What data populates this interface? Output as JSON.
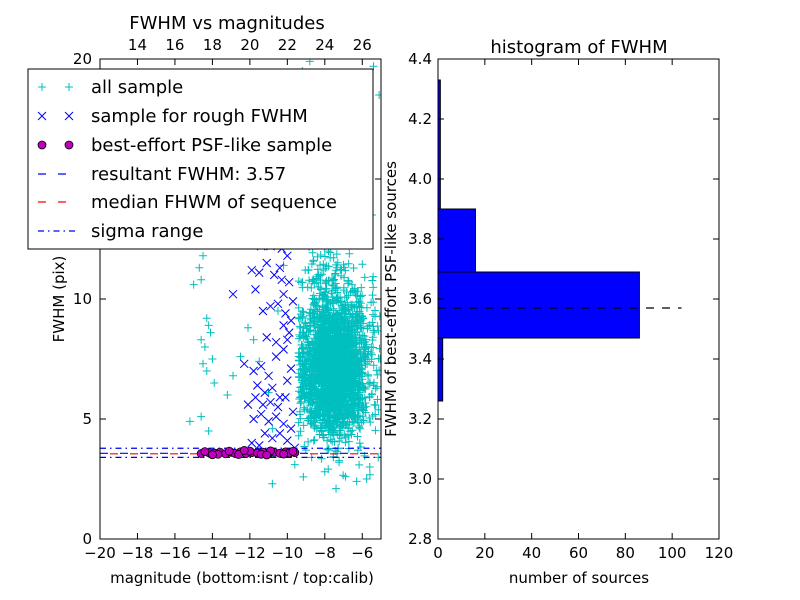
{
  "chart_data": [
    {
      "type": "scatter",
      "title": "FWHM vs magnitudes",
      "xlabel": "magnitude (bottom:isnt / top:calib)",
      "ylabel": "FWHM (pix)",
      "xlim": [
        -20,
        -5
      ],
      "ylim": [
        0,
        20
      ],
      "xticks": [
        -20,
        -18,
        -16,
        -14,
        -12,
        -10,
        -8,
        -6
      ],
      "xtick_labels": [
        "−20",
        "−18",
        "−16",
        "−14",
        "−12",
        "−10",
        "−8",
        "−6"
      ],
      "yticks": [
        0,
        5,
        10,
        15,
        20
      ],
      "ytick_labels": [
        "0",
        "5",
        "10",
        "15",
        "20"
      ],
      "top_axis": {
        "ticks": [
          14,
          16,
          18,
          20,
          22,
          24,
          26
        ],
        "tick_labels": [
          "14",
          "16",
          "18",
          "20",
          "22",
          "24",
          "26"
        ],
        "offset_to_bottom": -32
      },
      "legend_position": "top-left",
      "series": [
        {
          "name": "all sample",
          "marker": "plus",
          "color": "#00bfbf",
          "points": [
            [
              -14.9,
              15.9
            ],
            [
              -14.5,
              11.8
            ],
            [
              -14.7,
              11.3
            ],
            [
              -14.6,
              10.8
            ],
            [
              -15.0,
              10.6
            ],
            [
              -14.3,
              9.2
            ],
            [
              -14.2,
              8.9
            ],
            [
              -14.1,
              8.6
            ],
            [
              -14.6,
              8.3
            ],
            [
              -14.4,
              8.0
            ],
            [
              -14.0,
              7.5
            ],
            [
              -14.5,
              7.3
            ],
            [
              -14.3,
              7.0
            ],
            [
              -13.9,
              6.5
            ],
            [
              -14.6,
              5.1
            ],
            [
              -14.2,
              4.5
            ],
            [
              -15.2,
              4.9
            ],
            [
              -13.2,
              6.0
            ],
            [
              -12.5,
              7.6
            ],
            [
              -12.9,
              6.8
            ],
            [
              -12.1,
              8.8
            ],
            [
              -11.8,
              8.3
            ],
            [
              -11.5,
              7.4
            ],
            [
              -11.0,
              6.1
            ],
            [
              -10.8,
              4.6
            ],
            [
              -10.5,
              9.5
            ],
            [
              -10.4,
              12.9
            ],
            [
              -10.2,
              11.4
            ],
            [
              -10.0,
              16.4
            ],
            [
              -9.9,
              13.8
            ],
            [
              -9.6,
              15.1
            ],
            [
              -9.4,
              18.6
            ],
            [
              -9.2,
              19.5
            ],
            [
              -9.0,
              17.2
            ],
            [
              -8.8,
              19.9
            ],
            [
              -8.5,
              18.1
            ],
            [
              -8.2,
              19.4
            ],
            [
              -7.9,
              17.6
            ],
            [
              -7.6,
              18.8
            ],
            [
              -7.2,
              19.2
            ],
            [
              -6.8,
              18.3
            ],
            [
              -6.4,
              17.9
            ],
            [
              -5.9,
              19.3
            ],
            [
              -5.4,
              19.7
            ],
            [
              -5.1,
              18.5
            ],
            [
              -7.4,
              2.1
            ],
            [
              -6.9,
              2.6
            ],
            [
              -6.3,
              2.4
            ],
            [
              -5.6,
              3.0
            ],
            [
              -8.0,
              2.8
            ],
            [
              -10.8,
              2.3
            ],
            [
              -9.6,
              3.1
            ],
            [
              -8.7,
              3.4
            ]
          ],
          "dense_cloud": {
            "x_range": [
              -9.4,
              -5.0
            ],
            "y_range": [
              2.5,
              13.5
            ],
            "center": [
              -7.5,
              6.0
            ],
            "count": 2400
          }
        },
        {
          "name": "sample for rough FWHM",
          "marker": "x",
          "color": "#0000ff",
          "points": [
            [
              -12.9,
              10.2
            ],
            [
              -11.9,
              11.2
            ],
            [
              -11.5,
              11.1
            ],
            [
              -11.1,
              11.5
            ],
            [
              -10.7,
              11.0
            ],
            [
              -10.4,
              11.3
            ],
            [
              -10.2,
              10.2
            ],
            [
              -11.7,
              10.4
            ],
            [
              -11.3,
              9.5
            ],
            [
              -10.9,
              9.7
            ],
            [
              -10.5,
              9.8
            ],
            [
              -10.1,
              9.4
            ],
            [
              -9.9,
              10.7
            ],
            [
              -9.8,
              9.1
            ],
            [
              -12.3,
              7.3
            ],
            [
              -11.8,
              7.0
            ],
            [
              -11.4,
              7.2
            ],
            [
              -11.0,
              6.8
            ],
            [
              -10.6,
              7.6
            ],
            [
              -10.2,
              7.9
            ],
            [
              -10.0,
              8.3
            ],
            [
              -11.6,
              6.4
            ],
            [
              -11.2,
              6.1
            ],
            [
              -10.8,
              6.3
            ],
            [
              -10.4,
              5.9
            ],
            [
              -10.0,
              6.6
            ],
            [
              -9.8,
              7.1
            ],
            [
              -12.1,
              5.6
            ],
            [
              -11.7,
              5.9
            ],
            [
              -11.3,
              5.6
            ],
            [
              -10.9,
              5.7
            ],
            [
              -10.5,
              5.5
            ],
            [
              -10.1,
              5.9
            ],
            [
              -9.7,
              5.3
            ],
            [
              -11.8,
              5.0
            ],
            [
              -11.4,
              5.2
            ],
            [
              -11.0,
              4.9
            ],
            [
              -10.6,
              5.1
            ],
            [
              -10.2,
              4.8
            ],
            [
              -9.8,
              4.6
            ],
            [
              -11.2,
              4.4
            ],
            [
              -10.8,
              4.2
            ],
            [
              -10.4,
              4.4
            ],
            [
              -10.0,
              4.1
            ],
            [
              -11.9,
              4.0
            ],
            [
              -11.5,
              3.9
            ],
            [
              -9.6,
              3.8
            ],
            [
              -10.3,
              12.1
            ],
            [
              -10.0,
              11.8
            ],
            [
              -9.8,
              12.3
            ],
            [
              -10.9,
              12.2
            ],
            [
              -11.4,
              12.2
            ],
            [
              -10.2,
              8.9
            ],
            [
              -9.9,
              8.6
            ],
            [
              -10.6,
              8.2
            ],
            [
              -11.1,
              8.4
            ],
            [
              -9.7,
              9.9
            ],
            [
              -10.3,
              10.8
            ]
          ]
        },
        {
          "name": "best-effort PSF-like sample",
          "marker": "circle",
          "color": "#bf00bf",
          "points": [
            [
              -14.6,
              3.56
            ],
            [
              -14.2,
              3.6
            ],
            [
              -13.9,
              3.58
            ],
            [
              -13.6,
              3.62
            ],
            [
              -13.3,
              3.55
            ],
            [
              -13.0,
              3.61
            ],
            [
              -12.8,
              3.57
            ],
            [
              -12.5,
              3.63
            ],
            [
              -12.2,
              3.56
            ],
            [
              -11.9,
              3.6
            ],
            [
              -11.6,
              3.58
            ],
            [
              -11.3,
              3.62
            ],
            [
              -11.0,
              3.55
            ],
            [
              -10.7,
              3.61
            ],
            [
              -10.4,
              3.57
            ],
            [
              -10.1,
              3.63
            ],
            [
              -9.9,
              3.58
            ],
            [
              -9.6,
              3.6
            ],
            [
              -14.4,
              3.64
            ],
            [
              -13.7,
              3.53
            ],
            [
              -13.1,
              3.66
            ],
            [
              -12.6,
              3.52
            ],
            [
              -12.0,
              3.66
            ],
            [
              -11.4,
              3.53
            ],
            [
              -10.9,
              3.67
            ],
            [
              -10.2,
              3.54
            ],
            [
              -9.7,
              3.65
            ],
            [
              -14.0,
              3.51
            ],
            [
              -12.3,
              3.69
            ],
            [
              -11.1,
              3.5
            ]
          ]
        },
        {
          "name": "resultant FWHM: 3.57",
          "line": "dashed",
          "color": "#0000ff",
          "y": 3.57
        },
        {
          "name": "median FHWM of sequence",
          "line": "dashed",
          "color": "#ff0000",
          "y": 3.57
        },
        {
          "name": "sigma range",
          "line": "dashdot",
          "color": "#0000ff",
          "y": [
            3.4,
            3.78
          ]
        }
      ]
    },
    {
      "type": "bar",
      "orientation": "horizontal",
      "title": "histogram of FWHM",
      "xlabel": "number of sources",
      "ylabel": "FWHM of best-effort PSF-like sources",
      "xlim": [
        0,
        120
      ],
      "ylim": [
        2.8,
        4.4
      ],
      "xticks": [
        0,
        20,
        40,
        60,
        80,
        100,
        120
      ],
      "xtick_labels": [
        "0",
        "20",
        "40",
        "60",
        "80",
        "100",
        "120"
      ],
      "yticks": [
        2.8,
        3.0,
        3.2,
        3.4,
        3.6,
        3.8,
        4.0,
        4.2,
        4.4
      ],
      "ytick_labels": [
        "2.8",
        "3.0",
        "3.2",
        "3.4",
        "3.6",
        "3.8",
        "4.0",
        "4.2",
        "4.4"
      ],
      "bar_color": "#0000ff",
      "bins": [
        {
          "y0": 3.26,
          "y1": 3.47,
          "count": 2
        },
        {
          "y0": 3.47,
          "y1": 3.69,
          "count": 86
        },
        {
          "y0": 3.69,
          "y1": 3.9,
          "count": 16
        },
        {
          "y0": 3.9,
          "y1": 4.33,
          "count": 1
        }
      ],
      "reference_line": {
        "y": 3.57,
        "x": [
          0,
          104
        ],
        "style": "dashed",
        "color": "#000000"
      }
    }
  ]
}
